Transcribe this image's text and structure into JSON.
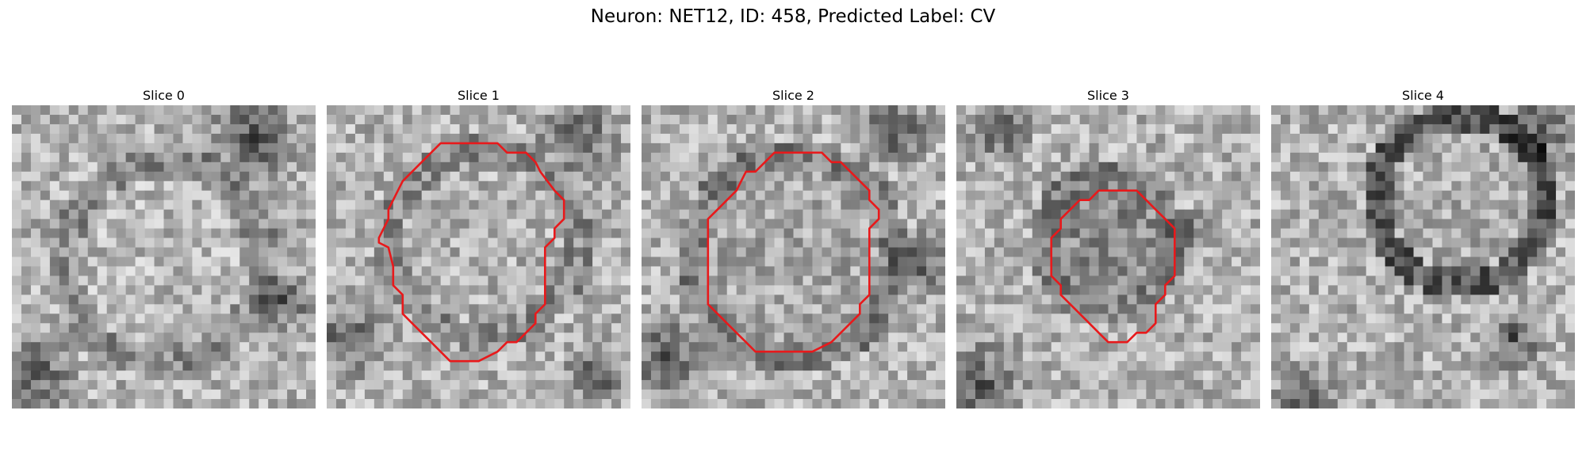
{
  "figure": {
    "title": "Neuron: NET12, ID: 458, Predicted Label: CV"
  },
  "contour_color": "#e8191b",
  "panels": [
    {
      "title": "Slice 0"
    },
    {
      "title": "Slice 1"
    },
    {
      "title": "Slice 2"
    },
    {
      "title": "Slice 3"
    },
    {
      "title": "Slice 4"
    }
  ]
}
